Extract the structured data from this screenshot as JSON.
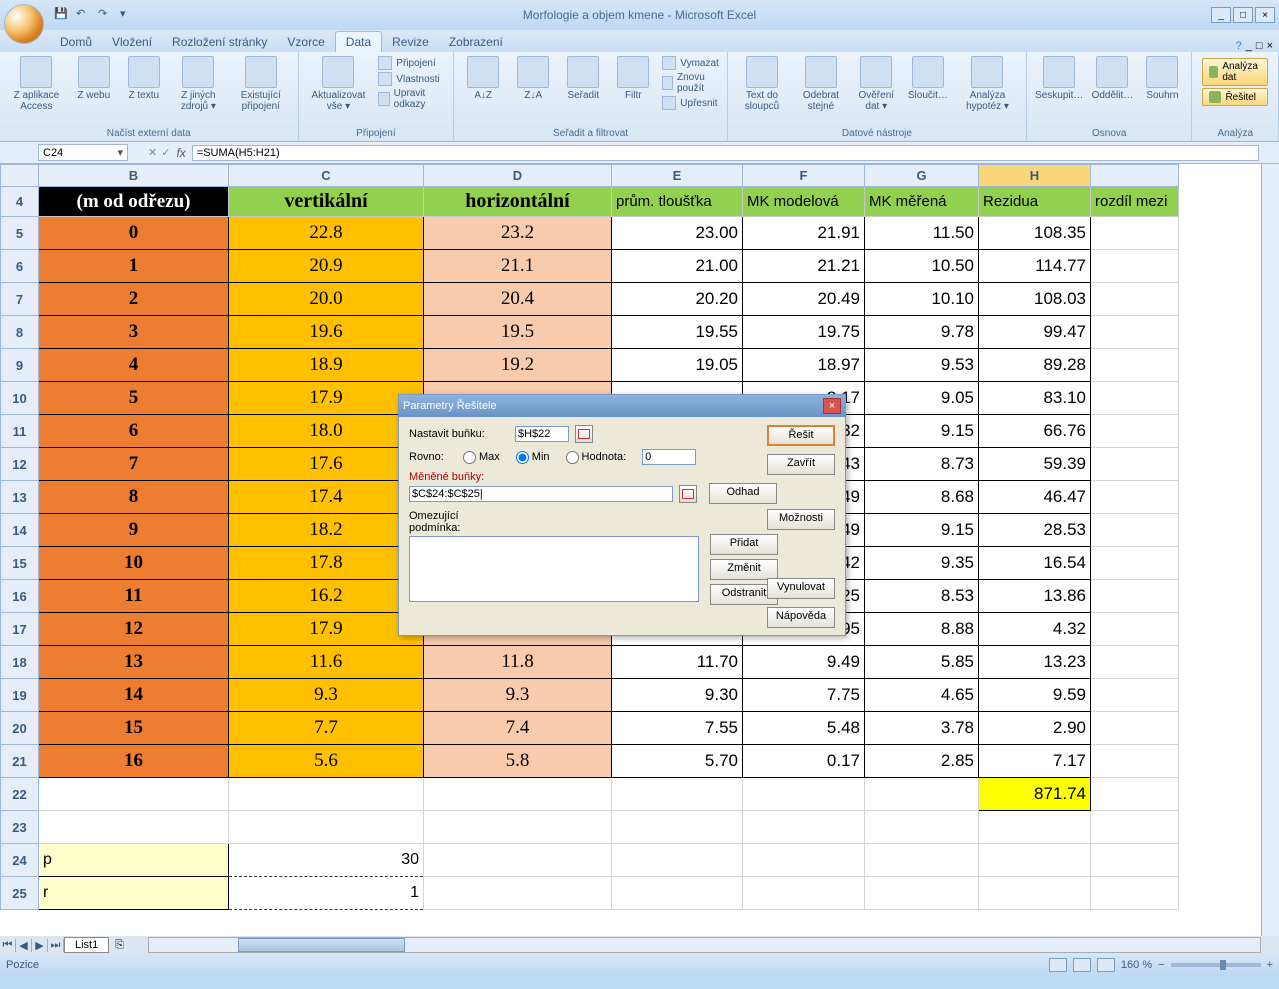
{
  "title": "Morfologie a objem kmene - Microsoft Excel",
  "menutabs": [
    "Domů",
    "Vložení",
    "Rozložení stránky",
    "Vzorce",
    "Data",
    "Revize",
    "Zobrazení"
  ],
  "menutab_active": 4,
  "ribbon": {
    "groups": [
      {
        "label": "Načíst externí data",
        "buttons": [
          "Z aplikace Access",
          "Z webu",
          "Z textu",
          "Z jiných zdrojů ▾",
          "Existující připojení"
        ]
      },
      {
        "label": "Připojení",
        "buttons": [
          "Aktualizovat vše ▾"
        ],
        "list": [
          "Připojení",
          "Vlastnosti",
          "Upravit odkazy"
        ]
      },
      {
        "label": "Seřadit a filtrovat",
        "buttons": [
          "A↓Z",
          "Z↓A",
          "Seřadit",
          "Filtr"
        ],
        "list": [
          "Vymazat",
          "Znovu použít",
          "Upřesnit"
        ]
      },
      {
        "label": "Datové nástroje",
        "buttons": [
          "Text do sloupců",
          "Odebrat stejné",
          "Ověření dat ▾",
          "Sloučit…",
          "Analýza hypotéz ▾"
        ]
      },
      {
        "label": "Osnova",
        "buttons": [
          "Seskupit…",
          "Oddělit…",
          "Souhrn"
        ]
      }
    ],
    "analysis_label": "Analýza",
    "analysis_btns": [
      "Analýza dat",
      "Řešitel"
    ]
  },
  "namebox": "C24",
  "formula": "=SUMA(H5:H21)",
  "columns": [
    "B",
    "C",
    "D",
    "E",
    "F",
    "G",
    "H"
  ],
  "col_last": "",
  "col_sel": "H",
  "rownums_start": 4,
  "headers": {
    "B": "(m od odřezu)",
    "C": "vertikální",
    "D": "horizontální",
    "E": "prům. tloušťka",
    "F": "MK modelová",
    "G": "MK měřená",
    "H": "Rezidua",
    "I": "rozdíl mezi"
  },
  "rows": [
    {
      "n": 5,
      "B": "0",
      "C": "22.8",
      "D": "23.2",
      "E": "23.00",
      "F": "21.91",
      "G": "11.50",
      "H": "108.35"
    },
    {
      "n": 6,
      "B": "1",
      "C": "20.9",
      "D": "21.1",
      "E": "21.00",
      "F": "21.21",
      "G": "10.50",
      "H": "114.77"
    },
    {
      "n": 7,
      "B": "2",
      "C": "20.0",
      "D": "20.4",
      "E": "20.20",
      "F": "20.49",
      "G": "10.10",
      "H": "108.03"
    },
    {
      "n": 8,
      "B": "3",
      "C": "19.6",
      "D": "19.5",
      "E": "19.55",
      "F": "19.75",
      "G": "9.78",
      "H": "99.47"
    },
    {
      "n": 9,
      "B": "4",
      "C": "18.9",
      "D": "19.2",
      "E": "19.05",
      "F": "18.97",
      "G": "9.53",
      "H": "89.28"
    },
    {
      "n": 10,
      "B": "5",
      "C": "17.9",
      "D": "",
      "E": "",
      "F": "8.17",
      "G": "9.05",
      "H": "83.10"
    },
    {
      "n": 11,
      "B": "6",
      "C": "18.0",
      "D": "",
      "E": "",
      "F": "7.32",
      "G": "9.15",
      "H": "66.76"
    },
    {
      "n": 12,
      "B": "7",
      "C": "17.6",
      "D": "",
      "E": "",
      "F": "6.43",
      "G": "8.73",
      "H": "59.39"
    },
    {
      "n": 13,
      "B": "8",
      "C": "17.4",
      "D": "",
      "E": "",
      "F": "5.49",
      "G": "8.68",
      "H": "46.47"
    },
    {
      "n": 14,
      "B": "9",
      "C": "18.2",
      "D": "",
      "E": "",
      "F": "4.49",
      "G": "9.15",
      "H": "28.53"
    },
    {
      "n": 15,
      "B": "10",
      "C": "17.8",
      "D": "",
      "E": "",
      "F": "3.42",
      "G": "9.35",
      "H": "16.54"
    },
    {
      "n": 16,
      "B": "11",
      "C": "16.2",
      "D": "",
      "E": "",
      "F": "2.25",
      "G": "8.53",
      "H": "13.86"
    },
    {
      "n": 17,
      "B": "12",
      "C": "17.9",
      "D": "17.6",
      "E": "17.75",
      "F": "10.95",
      "G": "8.88",
      "H": "4.32"
    },
    {
      "n": 18,
      "B": "13",
      "C": "11.6",
      "D": "11.8",
      "E": "11.70",
      "F": "9.49",
      "G": "5.85",
      "H": "13.23"
    },
    {
      "n": 19,
      "B": "14",
      "C": "9.3",
      "D": "9.3",
      "E": "9.30",
      "F": "7.75",
      "G": "4.65",
      "H": "9.59"
    },
    {
      "n": 20,
      "B": "15",
      "C": "7.7",
      "D": "7.4",
      "E": "7.55",
      "F": "5.48",
      "G": "3.78",
      "H": "2.90"
    },
    {
      "n": 21,
      "B": "16",
      "C": "5.6",
      "D": "5.8",
      "E": "5.70",
      "F": "0.17",
      "G": "2.85",
      "H": "7.17"
    }
  ],
  "sumH": "871.74",
  "params": [
    {
      "n": 24,
      "label": "p",
      "val": "30"
    },
    {
      "n": 25,
      "label": "r",
      "val": "1"
    }
  ],
  "sheettab": "List1",
  "status": "Pozice",
  "zoom": "160 %",
  "solver": {
    "title": "Parametry Řešitele",
    "set_cell_label": "Nastavit buňku:",
    "set_cell": "$H$22",
    "equal_label": "Rovno:",
    "opt_max": "Max",
    "opt_min": "Min",
    "opt_val": "Hodnota:",
    "val_input": "0",
    "changing_label": "Měněné buňky:",
    "changing": "$C$24:$C$25|",
    "constraints_label": "Omezující podmínka:",
    "btn_solve": "Řešit",
    "btn_close": "Zavřít",
    "btn_guess": "Odhad",
    "btn_options": "Možnosti",
    "btn_add": "Přidat",
    "btn_change": "Změnit",
    "btn_delete": "Odstranit",
    "btn_reset": "Vynulovat",
    "btn_help": "Nápověda"
  }
}
